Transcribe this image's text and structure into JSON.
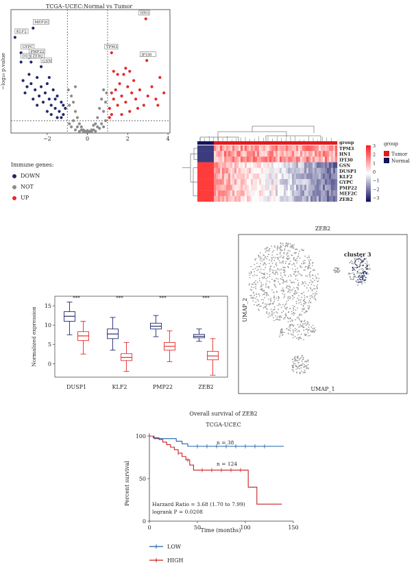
{
  "colors": {
    "down": "#1f2a6b",
    "not": "#8c8c8c",
    "up": "#e52a2a",
    "tumor": "#e31a1c",
    "normal": "#14145a",
    "low": "#1f5fa8",
    "high": "#c81e1e"
  },
  "volcano": {
    "title": "TCGA–UCEC:Normal vs Tumor",
    "ylabel": "−log₁₀ p.value",
    "xticks": [
      "−2",
      "0",
      "2",
      "4"
    ],
    "legend_title": "Immune genes:",
    "legend": [
      {
        "label": "DOWN",
        "key": "down"
      },
      {
        "label": "NOT",
        "key": "not"
      },
      {
        "label": "UP",
        "key": "up"
      }
    ]
  },
  "heatmap": {
    "group_label": "group",
    "genes": [
      "TPM3",
      "HN1",
      "IFI30",
      "GSN",
      "DUSP1",
      "KLF2",
      "GYPC",
      "PMP22",
      "MEF2C",
      "ZEB2"
    ],
    "scale_ticks": [
      "3",
      "2",
      "1",
      "0",
      "−1",
      "−2",
      "−3"
    ],
    "legend_title": "group",
    "legend": [
      {
        "label": "Tumor",
        "key": "tumor"
      },
      {
        "label": "Normal",
        "key": "normal"
      }
    ]
  },
  "umap": {
    "title": "ZEB2",
    "xlabel": "UMAP_1",
    "ylabel": "UMAP_2",
    "cluster_label": "cluster 3"
  },
  "km": {
    "title": "Overall survival of ZEB2",
    "subtitle": "TCGA-UCEC",
    "ylabel": "Percent survival",
    "xlabel": "Time (months)",
    "hr_text": "Harzard Ratio = 3.68 (1.70 to 7.99)",
    "p_text": "logrank P = 0.0208",
    "n_low": "n = 38",
    "n_high": "n = 124",
    "legend": [
      {
        "label": "LOW",
        "key": "low"
      },
      {
        "label": "HIGH",
        "key": "high"
      }
    ]
  },
  "chart_data": [
    {
      "type": "scatter",
      "title": "TCGA–UCEC:Normal vs Tumor",
      "ylabel": "−log₁₀ p.value",
      "xlim": [
        -3.8,
        4.1
      ],
      "ylim": [
        0,
        40
      ],
      "vlines": [
        -1,
        1
      ],
      "hline": 4,
      "labeled_points": [
        {
          "gene": "HN1",
          "x": 2.9,
          "y": 37,
          "group": "UP"
        },
        {
          "gene": "TPM3",
          "x": 1.2,
          "y": 26,
          "group": "UP"
        },
        {
          "gene": "IFI30",
          "x": 2.95,
          "y": 23.5,
          "group": "UP"
        },
        {
          "gene": "MEF2C",
          "x": -2.7,
          "y": 34,
          "group": "DOWN"
        },
        {
          "gene": "KLF2",
          "x": -3.6,
          "y": 31,
          "group": "DOWN"
        },
        {
          "gene": "GYPC",
          "x": -3.3,
          "y": 26,
          "group": "DOWN"
        },
        {
          "gene": "PMP22",
          "x": -2.9,
          "y": 24.5,
          "group": "DOWN"
        },
        {
          "gene": "DUSP1",
          "x": -3.3,
          "y": 23,
          "group": "DOWN"
        },
        {
          "gene": "ZEB2",
          "x": -2.8,
          "y": 23,
          "group": "DOWN"
        },
        {
          "gene": "GSN",
          "x": -2.3,
          "y": 21.5,
          "group": "DOWN"
        }
      ],
      "down_points": [
        [
          -3.2,
          17
        ],
        [
          -3.0,
          15
        ],
        [
          -2.8,
          16
        ],
        [
          -2.6,
          14
        ],
        [
          -2.5,
          18
        ],
        [
          -2.4,
          12
        ],
        [
          -2.3,
          15
        ],
        [
          -2.2,
          10
        ],
        [
          -2.1,
          13
        ],
        [
          -2.0,
          16
        ],
        [
          -1.9,
          11
        ],
        [
          -1.8,
          9
        ],
        [
          -1.7,
          14
        ],
        [
          -1.6,
          8
        ],
        [
          -1.5,
          12
        ],
        [
          -1.4,
          7
        ],
        [
          -1.3,
          10
        ],
        [
          -1.2,
          6
        ],
        [
          -1.1,
          8
        ],
        [
          -2.7,
          11
        ],
        [
          -2.9,
          19
        ],
        [
          -3.1,
          13
        ],
        [
          -1.8,
          6
        ],
        [
          -1.5,
          5
        ],
        [
          -1.3,
          5
        ],
        [
          -2.0,
          7
        ],
        [
          -1.6,
          11
        ],
        [
          -2.5,
          9
        ],
        [
          -1.2,
          9
        ],
        [
          -1.9,
          18
        ]
      ],
      "up_points": [
        [
          1.1,
          8
        ],
        [
          1.2,
          6
        ],
        [
          1.3,
          11
        ],
        [
          1.4,
          14
        ],
        [
          1.5,
          9
        ],
        [
          1.6,
          16
        ],
        [
          1.7,
          12
        ],
        [
          1.8,
          19
        ],
        [
          1.9,
          10
        ],
        [
          2.0,
          15
        ],
        [
          2.1,
          7
        ],
        [
          2.2,
          13
        ],
        [
          2.3,
          17
        ],
        [
          2.4,
          11
        ],
        [
          2.6,
          14
        ],
        [
          2.8,
          9
        ],
        [
          3.0,
          12
        ],
        [
          3.2,
          15
        ],
        [
          3.4,
          11
        ],
        [
          3.6,
          18
        ],
        [
          3.8,
          13
        ],
        [
          1.5,
          19
        ],
        [
          1.7,
          6
        ],
        [
          1.3,
          20
        ],
        [
          2.5,
          8
        ],
        [
          1.9,
          21
        ],
        [
          1.2,
          13
        ],
        [
          3.5,
          9
        ],
        [
          1.1,
          5
        ],
        [
          2.1,
          20
        ]
      ],
      "not_points": [
        [
          -0.9,
          3
        ],
        [
          -0.8,
          2
        ],
        [
          -0.7,
          4
        ],
        [
          -0.6,
          1
        ],
        [
          -0.5,
          2
        ],
        [
          -0.4,
          0.5
        ],
        [
          -0.3,
          1
        ],
        [
          -0.2,
          0.3
        ],
        [
          -0.1,
          0.6
        ],
        [
          0,
          0.2
        ],
        [
          0.1,
          0.5
        ],
        [
          0.2,
          0.3
        ],
        [
          0.3,
          1
        ],
        [
          0.4,
          0.6
        ],
        [
          0.5,
          2
        ],
        [
          0.6,
          1.5
        ],
        [
          0.7,
          3
        ],
        [
          0.8,
          2
        ],
        [
          0.9,
          4
        ],
        [
          -0.9,
          9
        ],
        [
          -0.8,
          12
        ],
        [
          -0.6,
          7
        ],
        [
          -0.5,
          5
        ],
        [
          -0.7,
          10
        ],
        [
          0.5,
          5
        ],
        [
          0.6,
          8
        ],
        [
          0.7,
          11
        ],
        [
          0.8,
          7
        ],
        [
          0.9,
          10
        ],
        [
          0.4,
          3
        ],
        [
          -0.4,
          3
        ],
        [
          -0.3,
          2
        ],
        [
          0.2,
          1
        ],
        [
          -0.2,
          1
        ],
        [
          0.0,
          0.8
        ],
        [
          0.3,
          2.5
        ],
        [
          -0.95,
          14
        ],
        [
          0.95,
          13
        ],
        [
          -0.6,
          15
        ],
        [
          0.8,
          14
        ]
      ]
    },
    {
      "type": "heatmap",
      "rows": [
        "TPM3",
        "HN1",
        "IFI30",
        "GSN",
        "DUSP1",
        "KLF2",
        "GYPC",
        "PMP22",
        "MEF2C",
        "ZEB2"
      ],
      "groups": [
        "Normal",
        "Tumor"
      ],
      "scale": [
        -3,
        3
      ]
    },
    {
      "type": "box",
      "categories": [
        "DUSP1",
        "KLF2",
        "PMP22",
        "ZEB2"
      ],
      "ylabel": "Normalized expression",
      "yticks": [
        0,
        5,
        10,
        15
      ],
      "ylim": [
        -3.5,
        17.5
      ],
      "significance": [
        "***",
        "***",
        "***",
        "***"
      ],
      "series": [
        {
          "group": "Normal",
          "stats": [
            [
              7.5,
              11.0,
              12.3,
              13.5,
              16.0
            ],
            [
              3.5,
              6.5,
              7.7,
              9.0,
              12.0
            ],
            [
              7.0,
              9.0,
              9.7,
              10.5,
              12.5
            ],
            [
              5.8,
              6.7,
              7.1,
              7.6,
              9.0
            ]
          ]
        },
        {
          "group": "Tumor",
          "stats": [
            [
              2.5,
              6.0,
              7.2,
              8.3,
              11.0
            ],
            [
              -2.0,
              0.8,
              1.6,
              2.6,
              5.5
            ],
            [
              0.5,
              3.5,
              4.5,
              5.5,
              8.5
            ],
            [
              -3.0,
              1.0,
              2.0,
              3.2,
              6.5
            ]
          ]
        }
      ]
    },
    {
      "type": "scatter",
      "title": "ZEB2",
      "xlabel": "UMAP_1",
      "ylabel": "UMAP_2",
      "annotation": "cluster 3"
    },
    {
      "type": "line",
      "title": "Overall survival of ZEB2",
      "subtitle": "TCGA-UCEC",
      "xlabel": "Time (months)",
      "ylabel": "Percent survival",
      "xlim": [
        0,
        150
      ],
      "ylim": [
        0,
        100
      ],
      "xticks": [
        0,
        50,
        100,
        150
      ],
      "yticks": [
        0,
        50,
        100
      ],
      "series": [
        {
          "name": "LOW",
          "x": [
            0,
            5,
            22,
            28,
            34,
            40,
            140
          ],
          "y": [
            100,
            97,
            97,
            94,
            91,
            88,
            88
          ]
        },
        {
          "name": "HIGH",
          "x": [
            0,
            4,
            10,
            14,
            18,
            22,
            26,
            30,
            34,
            38,
            42,
            46,
            60,
            100,
            103,
            110,
            112,
            138
          ],
          "y": [
            100,
            98,
            96,
            93,
            90,
            87,
            84,
            80,
            76,
            72,
            66,
            60,
            60,
            60,
            40,
            40,
            20,
            20
          ]
        }
      ]
    }
  ]
}
